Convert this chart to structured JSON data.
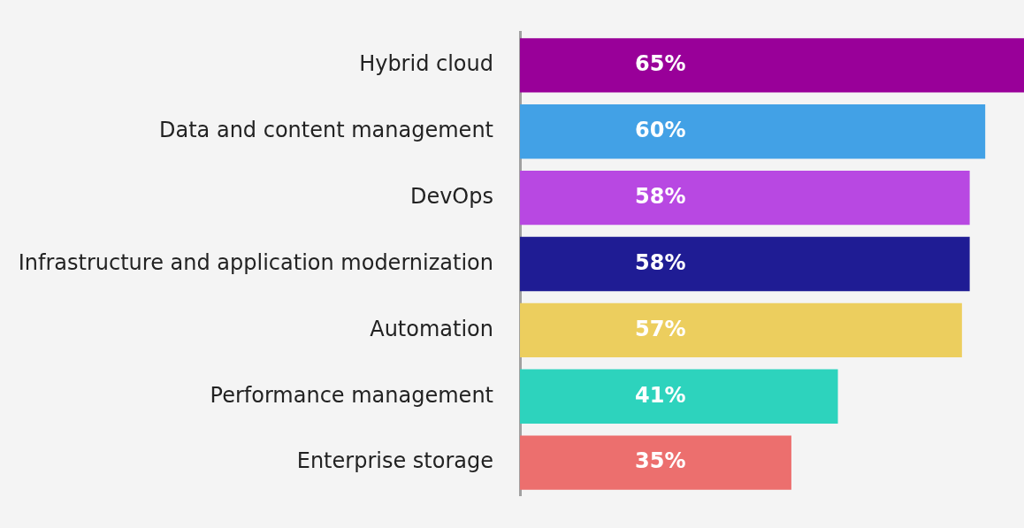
{
  "chart_data": {
    "type": "bar",
    "orientation": "horizontal",
    "categories": [
      "Hybrid cloud",
      "Data and content management",
      "DevOps",
      "Infrastructure and application modernization",
      "Automation",
      "Performance management",
      "Enterprise storage"
    ],
    "values": [
      65,
      60,
      58,
      58,
      57,
      41,
      35
    ],
    "colors": [
      "#990099",
      "#42a1e6",
      "#b848e2",
      "#1f1c94",
      "#ecce5e",
      "#2dd3bd",
      "#ec6f6e"
    ],
    "value_labels": [
      "65%",
      "60%",
      "58%",
      "58%",
      "57%",
      "41%",
      "35%"
    ],
    "xlim": [
      0,
      65
    ],
    "tick_labels": "y"
  }
}
